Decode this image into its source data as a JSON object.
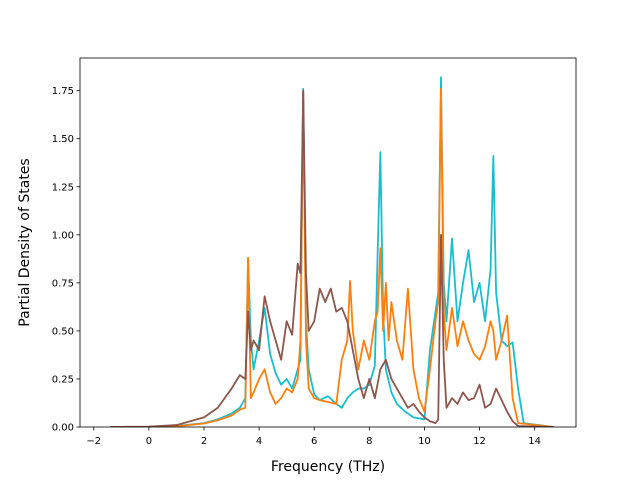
{
  "chart_data": {
    "type": "line",
    "title": "",
    "xlabel": "Frequency (THz)",
    "ylabel": "Partial Density of States",
    "xlim": [
      -2.5,
      15.5
    ],
    "ylim": [
      0,
      1.92
    ],
    "xticks": [
      -2,
      0,
      2,
      4,
      6,
      8,
      10,
      12,
      14
    ],
    "xtick_labels": [
      "−2",
      "0",
      "2",
      "4",
      "6",
      "8",
      "10",
      "12",
      "14"
    ],
    "yticks": [
      0,
      0.25,
      0.5,
      0.75,
      1.0,
      1.25,
      1.5,
      1.75
    ],
    "ytick_labels": [
      "0.00",
      "0.25",
      "0.50",
      "0.75",
      "1.00",
      "1.25",
      "1.50",
      "1.75"
    ],
    "grid": false,
    "legend": "none",
    "series": [
      {
        "color": "#17becf",
        "x": [
          -1.4,
          0,
          1,
          2,
          2.5,
          3,
          3.3,
          3.5,
          3.6,
          3.7,
          3.8,
          4,
          4.2,
          4.4,
          4.6,
          4.8,
          5,
          5.2,
          5.4,
          5.5,
          5.6,
          5.7,
          5.8,
          6,
          6.2,
          6.5,
          6.8,
          7,
          7.2,
          7.4,
          7.6,
          7.8,
          8,
          8.2,
          8.3,
          8.4,
          8.5,
          8.6,
          8.8,
          9,
          9.3,
          9.6,
          10,
          10.2,
          10.4,
          10.5,
          10.6,
          10.7,
          10.8,
          11,
          11.2,
          11.4,
          11.6,
          11.8,
          12,
          12.2,
          12.4,
          12.5,
          12.6,
          12.8,
          13,
          13.2,
          13.4,
          13.6,
          14.7
        ],
        "y": [
          0,
          0,
          0.005,
          0.02,
          0.04,
          0.07,
          0.1,
          0.15,
          0.88,
          0.45,
          0.3,
          0.45,
          0.62,
          0.38,
          0.28,
          0.22,
          0.25,
          0.2,
          0.3,
          0.35,
          1.76,
          0.55,
          0.3,
          0.17,
          0.14,
          0.16,
          0.12,
          0.1,
          0.15,
          0.18,
          0.2,
          0.2,
          0.22,
          0.32,
          0.9,
          1.43,
          0.6,
          0.3,
          0.18,
          0.12,
          0.08,
          0.05,
          0.04,
          0.4,
          0.6,
          0.7,
          1.82,
          0.75,
          0.55,
          0.98,
          0.55,
          0.75,
          0.92,
          0.65,
          0.75,
          0.55,
          0.82,
          1.41,
          0.7,
          0.45,
          0.42,
          0.44,
          0.2,
          0.02,
          0
        ]
      },
      {
        "color": "#ff7f0e",
        "x": [
          -1.4,
          0,
          1,
          2,
          2.5,
          3,
          3.3,
          3.5,
          3.6,
          3.7,
          3.8,
          4,
          4.2,
          4.4,
          4.6,
          4.8,
          5,
          5.2,
          5.4,
          5.5,
          5.6,
          5.7,
          5.8,
          6,
          6.2,
          6.5,
          6.8,
          7,
          7.2,
          7.3,
          7.4,
          7.6,
          7.8,
          8,
          8.2,
          8.3,
          8.4,
          8.5,
          8.6,
          8.7,
          8.8,
          9,
          9.2,
          9.4,
          9.6,
          9.8,
          10,
          10.2,
          10.4,
          10.5,
          10.6,
          10.7,
          10.8,
          11,
          11.2,
          11.4,
          11.6,
          11.8,
          12,
          12.2,
          12.4,
          12.5,
          12.6,
          12.8,
          13,
          13.2,
          13.4,
          14.7
        ],
        "y": [
          0,
          0,
          0.004,
          0.018,
          0.035,
          0.06,
          0.09,
          0.1,
          0.88,
          0.15,
          0.18,
          0.25,
          0.3,
          0.18,
          0.12,
          0.15,
          0.2,
          0.18,
          0.25,
          0.45,
          1.74,
          0.45,
          0.2,
          0.15,
          0.14,
          0.13,
          0.12,
          0.35,
          0.45,
          0.76,
          0.5,
          0.3,
          0.45,
          0.35,
          0.55,
          0.6,
          0.93,
          0.5,
          0.75,
          0.45,
          0.65,
          0.45,
          0.35,
          0.72,
          0.3,
          0.15,
          0.08,
          0.3,
          0.55,
          0.65,
          1.76,
          0.6,
          0.4,
          0.62,
          0.42,
          0.55,
          0.45,
          0.38,
          0.35,
          0.42,
          0.55,
          0.5,
          0.35,
          0.45,
          0.58,
          0.15,
          0.02,
          0
        ]
      },
      {
        "color": "#8c564b",
        "x": [
          -1.4,
          0,
          1,
          2,
          2.5,
          3,
          3.3,
          3.5,
          3.6,
          3.7,
          3.8,
          4,
          4.2,
          4.4,
          4.6,
          4.8,
          5,
          5.2,
          5.4,
          5.5,
          5.6,
          5.7,
          5.8,
          6,
          6.2,
          6.4,
          6.6,
          6.8,
          7,
          7.2,
          7.4,
          7.6,
          7.8,
          8,
          8.2,
          8.4,
          8.6,
          8.8,
          9,
          9.2,
          9.4,
          9.6,
          9.8,
          10,
          10.2,
          10.4,
          10.5,
          10.6,
          10.7,
          10.8,
          11,
          11.2,
          11.4,
          11.6,
          11.8,
          12,
          12.2,
          12.4,
          12.6,
          12.8,
          13,
          13.2,
          13.4,
          14.7
        ],
        "y": [
          0,
          0.002,
          0.01,
          0.05,
          0.1,
          0.2,
          0.27,
          0.25,
          0.6,
          0.4,
          0.45,
          0.4,
          0.68,
          0.55,
          0.45,
          0.35,
          0.55,
          0.48,
          0.85,
          0.8,
          1.75,
          0.8,
          0.5,
          0.55,
          0.72,
          0.65,
          0.72,
          0.6,
          0.62,
          0.55,
          0.4,
          0.25,
          0.15,
          0.25,
          0.15,
          0.3,
          0.35,
          0.25,
          0.2,
          0.15,
          0.1,
          0.12,
          0.08,
          0.05,
          0.03,
          0.02,
          0.04,
          1.0,
          0.35,
          0.1,
          0.15,
          0.12,
          0.18,
          0.14,
          0.15,
          0.22,
          0.1,
          0.12,
          0.2,
          0.14,
          0.08,
          0.03,
          0.005,
          0
        ]
      }
    ]
  }
}
